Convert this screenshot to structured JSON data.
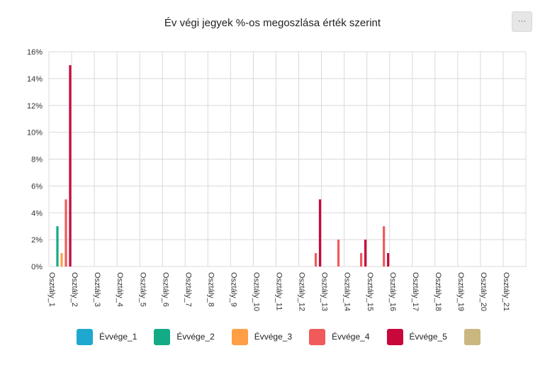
{
  "title": "Év végi jegyek %-os megoszlása érték szerint",
  "menu_label": "···",
  "colors": {
    "grid": "#d9d9d9",
    "axis_text": "#333333"
  },
  "legend": [
    {
      "name": "Évvége_1",
      "color": "#1fa8cf"
    },
    {
      "name": "Évvége_2",
      "color": "#12ab86"
    },
    {
      "name": "Évvége_3",
      "color": "#ff9f45"
    },
    {
      "name": "Évvége_4",
      "color": "#f05a5a"
    },
    {
      "name": "Évvége_5",
      "color": "#c8073a"
    },
    {
      "name": "",
      "color": "#c9b77f"
    }
  ],
  "chart_data": {
    "type": "bar",
    "title": "Év végi jegyek %-os megoszlása érték szerint",
    "xlabel": "",
    "ylabel": "",
    "ylim": [
      0,
      16
    ],
    "yticks": [
      "0%",
      "2%",
      "4%",
      "6%",
      "8%",
      "10%",
      "12%",
      "14%",
      "16%"
    ],
    "grid": true,
    "legend_position": "bottom",
    "categories": [
      "Osztály_1",
      "Osztály_2",
      "Osztály_3",
      "Osztály_4",
      "Osztály_5",
      "Osztály_6",
      "Osztály_7",
      "Osztály_8",
      "Osztály_9",
      "Osztály_10",
      "Osztály_11",
      "Osztály_12",
      "Osztály_13",
      "Osztály_14",
      "Osztály_15",
      "Osztály_16",
      "Osztály_17",
      "Osztály_18",
      "Osztály_19",
      "Osztály_20",
      "Osztály_21"
    ],
    "series": [
      {
        "name": "Évvége_1",
        "values": [
          0,
          0,
          0,
          0,
          0,
          0,
          0,
          0,
          0,
          0,
          0,
          0,
          0,
          0,
          0,
          0,
          0,
          0,
          0,
          0,
          0
        ]
      },
      {
        "name": "Évvége_2",
        "values": [
          3,
          0,
          0,
          0,
          0,
          0,
          0,
          0,
          0,
          0,
          0,
          0,
          0,
          0,
          0,
          0,
          0,
          0,
          0,
          0,
          0
        ]
      },
      {
        "name": "Évvége_3",
        "values": [
          1,
          0,
          0,
          0,
          0,
          0,
          0,
          0,
          0,
          0,
          0,
          0,
          0,
          0,
          0,
          0,
          0,
          0,
          0,
          0,
          0
        ]
      },
      {
        "name": "Évvége_4",
        "values": [
          5,
          0,
          0,
          0,
          0,
          0,
          0,
          0,
          0,
          0,
          0,
          1,
          2,
          1,
          3,
          0,
          0,
          0,
          0,
          0,
          0
        ]
      },
      {
        "name": "Évvége_5",
        "values": [
          15,
          0,
          0,
          0,
          0,
          0,
          0,
          0,
          0,
          0,
          0,
          5,
          0,
          2,
          1,
          0,
          0,
          0,
          0,
          0,
          0
        ]
      },
      {
        "name": "",
        "values": [
          0,
          0,
          0,
          0,
          0,
          0,
          0,
          0,
          0,
          0,
          0,
          0,
          0,
          0,
          0,
          0,
          0,
          0,
          0,
          0,
          0
        ]
      }
    ]
  }
}
